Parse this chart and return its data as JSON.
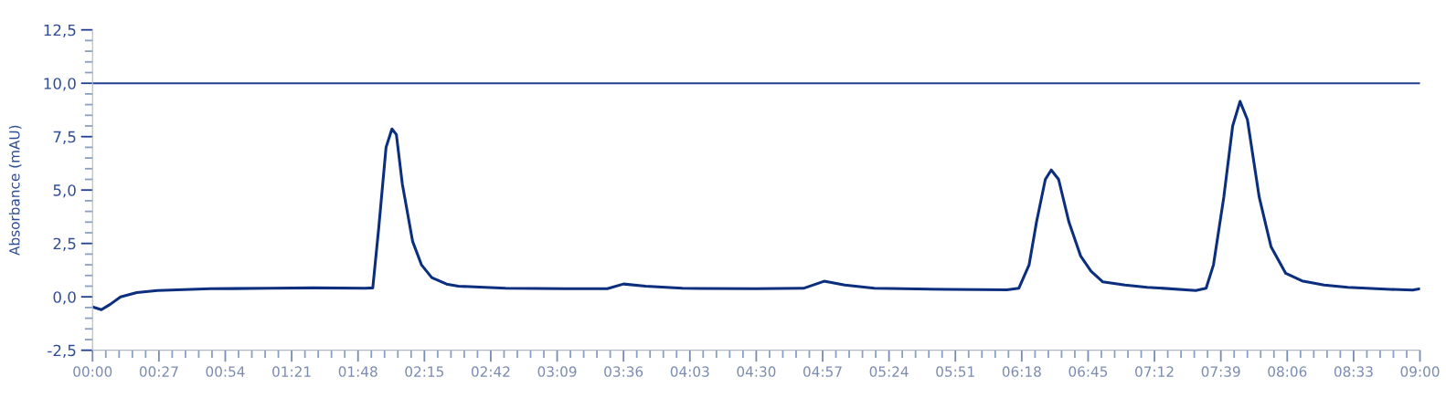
{
  "chart_data": {
    "type": "line",
    "ylabel": "Absorbance (mAU)",
    "xlim": [
      0,
      9
    ],
    "ylim": [
      -2.5,
      12.5
    ],
    "yticks": [
      {
        "value": -2.5,
        "label": "-2,5"
      },
      {
        "value": 0,
        "label": "0,0"
      },
      {
        "value": 2.5,
        "label": "2,5"
      },
      {
        "value": 5,
        "label": "5,0"
      },
      {
        "value": 7.5,
        "label": "7,5"
      },
      {
        "value": 10,
        "label": "10,0"
      },
      {
        "value": 12.5,
        "label": "12,5"
      }
    ],
    "xticks": [
      {
        "value": 0,
        "label": "00:00"
      },
      {
        "value": 0.45,
        "label": "00:27"
      },
      {
        "value": 0.9,
        "label": "00:54"
      },
      {
        "value": 1.35,
        "label": "01:21"
      },
      {
        "value": 1.8,
        "label": "01:48"
      },
      {
        "value": 2.25,
        "label": "02:15"
      },
      {
        "value": 2.7,
        "label": "02:42"
      },
      {
        "value": 3.15,
        "label": "03:09"
      },
      {
        "value": 3.6,
        "label": "03:36"
      },
      {
        "value": 4.05,
        "label": "04:03"
      },
      {
        "value": 4.5,
        "label": "04:30"
      },
      {
        "value": 4.95,
        "label": "04:57"
      },
      {
        "value": 5.4,
        "label": "05:24"
      },
      {
        "value": 5.85,
        "label": "05:51"
      },
      {
        "value": 6.3,
        "label": "06:18"
      },
      {
        "value": 6.75,
        "label": "06:45"
      },
      {
        "value": 7.2,
        "label": "07:12"
      },
      {
        "value": 7.65,
        "label": "07:39"
      },
      {
        "value": 8.1,
        "label": "08:06"
      },
      {
        "value": 8.55,
        "label": "08:33"
      },
      {
        "value": 9,
        "label": "09:00"
      }
    ],
    "grid": false,
    "legend": false,
    "marker": "none",
    "line_style": "solid",
    "ref_lines": [
      {
        "axis": "y",
        "value": 10,
        "label": null,
        "color": "#1f3f93"
      }
    ],
    "series": [
      {
        "color": "#0b2f7e",
        "x": [
          0,
          0.06,
          0.12,
          0.19,
          0.3,
          0.44,
          0.8,
          1.2,
          1.5,
          1.85,
          1.9,
          1.94,
          1.99,
          2.03,
          2.06,
          2.1,
          2.17,
          2.23,
          2.3,
          2.4,
          2.48,
          2.8,
          3.2,
          3.49,
          3.6,
          3.75,
          4.0,
          4.5,
          4.82,
          4.96,
          5.1,
          5.3,
          5.8,
          6.2,
          6.28,
          6.35,
          6.4,
          6.46,
          6.5,
          6.55,
          6.62,
          6.7,
          6.77,
          6.85,
          7.0,
          7.15,
          7.48,
          7.55,
          7.6,
          7.67,
          7.73,
          7.78,
          7.83,
          7.91,
          7.99,
          8.09,
          8.2,
          8.35,
          8.51,
          8.8,
          8.95,
          9.0
        ],
        "values": [
          -0.47,
          -0.6,
          -0.35,
          0.0,
          0.2,
          0.3,
          0.38,
          0.4,
          0.42,
          0.4,
          0.42,
          3.2,
          7.0,
          7.86,
          7.6,
          5.3,
          2.6,
          1.5,
          0.9,
          0.6,
          0.5,
          0.4,
          0.38,
          0.38,
          0.6,
          0.5,
          0.4,
          0.38,
          0.4,
          0.73,
          0.55,
          0.4,
          0.35,
          0.33,
          0.4,
          1.5,
          3.5,
          5.5,
          5.94,
          5.5,
          3.5,
          1.9,
          1.2,
          0.7,
          0.55,
          0.45,
          0.3,
          0.4,
          1.5,
          4.67,
          8.0,
          9.15,
          8.3,
          4.67,
          2.35,
          1.1,
          0.75,
          0.55,
          0.45,
          0.35,
          0.32,
          0.38
        ]
      }
    ]
  }
}
